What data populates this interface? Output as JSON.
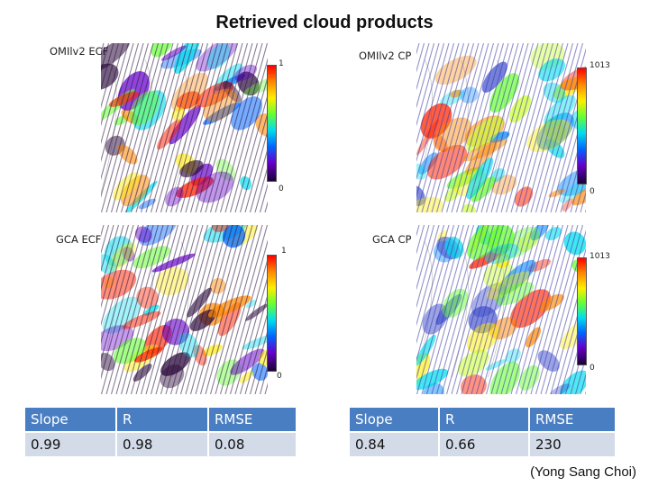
{
  "slide": {
    "title": "Retrieved cloud products",
    "credit": "(Yong Sang Choi)"
  },
  "panels": [
    {
      "id": "omi-ecf",
      "label": "OMIlv2 ECF",
      "cbar_max": "1",
      "cbar_min": "0",
      "scheme": "ecf"
    },
    {
      "id": "omi-cp",
      "label": "OMIlv2 CP",
      "cbar_max": "1013",
      "cbar_min": "0",
      "scheme": "cp"
    },
    {
      "id": "gca-ecf",
      "label": "GCA ECF",
      "cbar_max": "1",
      "cbar_min": "0",
      "scheme": "ecf"
    },
    {
      "id": "gca-cp",
      "label": "GCA CP",
      "cbar_max": "1013",
      "cbar_min": "0",
      "scheme": "cp"
    }
  ],
  "stats": [
    {
      "headers": [
        "Slope",
        "R",
        "RMSE"
      ],
      "values": [
        "0.99",
        "0.98",
        "0.08"
      ]
    },
    {
      "headers": [
        "Slope",
        "R",
        "RMSE"
      ],
      "values": [
        "0.84",
        "0.66",
        "230"
      ]
    }
  ],
  "colors": {
    "header_bg": "#4a7ec2",
    "value_bg": "#d3dbe8",
    "colorbar": [
      "#ff0000",
      "#ff8800",
      "#ffee00",
      "#66ff33",
      "#00ddee",
      "#0066ff",
      "#6600cc",
      "#1a0033"
    ]
  }
}
